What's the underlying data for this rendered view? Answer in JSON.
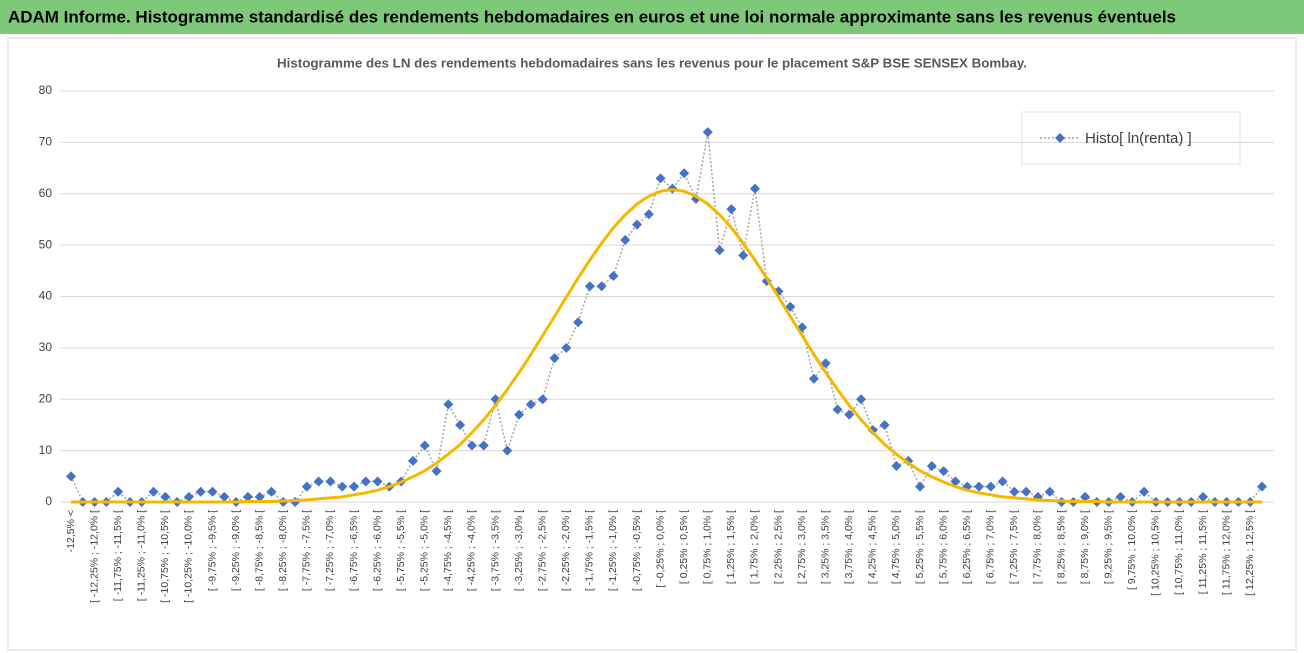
{
  "chart_data": {
    "type": "line",
    "title": "ADAM Informe. Histogramme standardisé des rendements hebdomadaires en euros et une loi normale approximante sans les revenus éventuels",
    "subtitle": "Histogramme des LN des rendements hebdomadaires sans les revenus pour le placement S&P BSE SENSEX Bombay.",
    "categories": [
      "-12,5% <",
      null,
      "[ -12,25% ; -12,0% [",
      null,
      "[ -11,75% ; -11,5% [",
      null,
      "[ -11,25% ; -11,0% [",
      null,
      "[ -10,75% ; -10,5% [",
      null,
      "[ -10,25% ; -10,0% [",
      null,
      "[ -9,75% ; -9,5% [",
      null,
      "[ -9,25% ; -9,0% [",
      null,
      "[ -8,75% ; -8,5% [",
      null,
      "[ -8,25% ; -8,0% [",
      null,
      "[ -7,75% ; -7,5% [",
      null,
      "[ -7,25% ; -7,0% [",
      null,
      "[ -6,75% ; -6,5% [",
      null,
      "[ -6,25% ; -6,0% [",
      null,
      "[ -5,75% ; -5,5% [",
      null,
      "[ -5,25% ; -5,0% [",
      null,
      "[ -4,75% ; -4,5% [",
      null,
      "[ -4,25% ; -4,0% [",
      null,
      "[ -3,75% ; -3,5% [",
      null,
      "[ -3,25% ; -3,0% [",
      null,
      "[ -2,75% ; -2,5% [",
      null,
      "[ -2,25% ; -2,0% [",
      null,
      "[ -1,75% ; -1,5% [",
      null,
      "[ -1,25% ; -1,0% [",
      null,
      "[ -0,75% ; -0,5% [",
      null,
      "[ -0,25% ; 0,0% [",
      null,
      "[ 0,25% ; 0,5% [",
      null,
      "[ 0,75% ; 1,0% [",
      null,
      "[ 1,25% ; 1,5% [",
      null,
      "[ 1,75% ; 2,0% [",
      null,
      "[ 2,25% ; 2,5% [",
      null,
      "[ 2,75% ; 3,0% [",
      null,
      "[ 3,25% ; 3,5% [",
      null,
      "[ 3,75% ; 4,0% [",
      null,
      "[ 4,25% ; 4,5% [",
      null,
      "[ 4,75% ; 5,0% [",
      null,
      "[ 5,25% ; 5,5% [",
      null,
      "[ 5,75% ; 6,0% [",
      null,
      "[ 6,25% ; 6,5% [",
      null,
      "[ 6,75% ; 7,0% [",
      null,
      "[ 7,25% ; 7,5% [",
      null,
      "[ 7,75% ; 8,0% [",
      null,
      "[ 8,25% ; 8,5% [",
      null,
      "[ 8,75% ; 9,0% [",
      null,
      "[ 9,25% ; 9,5% [",
      null,
      "[ 9,75% ; 10,0% [",
      null,
      "[ 10,25% ; 10,5% [",
      null,
      "[ 10,75% ; 11,0% [",
      null,
      "[ 11,25% ; 11,5% [",
      null,
      "[ 11,75% ; 12,0% [",
      null,
      "[ 12,25% ; 12,5% [",
      null
    ],
    "series": [
      {
        "name": "Histo[ ln(renta) ]",
        "color": "#4472c4",
        "line_color": "#a5a5a5",
        "marker": "diamond",
        "values": [
          5,
          0,
          0,
          0,
          2,
          0,
          0,
          2,
          1,
          0,
          1,
          2,
          2,
          1,
          0,
          1,
          1,
          2,
          0,
          0,
          3,
          4,
          4,
          3,
          3,
          4,
          4,
          3,
          4,
          8,
          11,
          6,
          19,
          15,
          11,
          11,
          20,
          10,
          17,
          19,
          20,
          28,
          30,
          35,
          42,
          42,
          44,
          51,
          54,
          56,
          63,
          61,
          64,
          59,
          72,
          49,
          57,
          48,
          61,
          43,
          41,
          38,
          34,
          24,
          27,
          18,
          17,
          20,
          14,
          15,
          7,
          8,
          3,
          7,
          6,
          4,
          3,
          3,
          3,
          4,
          2,
          2,
          1,
          2,
          0,
          0,
          1,
          0,
          0,
          1,
          0,
          2,
          0,
          0,
          0,
          0,
          1,
          0,
          0,
          0,
          0,
          3
        ]
      },
      {
        "color": "#f5b800",
        "values": [
          0,
          0,
          0,
          0,
          0,
          0,
          0,
          0,
          0,
          0,
          0,
          0,
          0,
          0,
          0,
          0.1,
          0.1,
          0.1,
          0.2,
          0.3,
          0.4,
          0.6,
          0.8,
          1.0,
          1.4,
          1.8,
          2.3,
          3.0,
          3.9,
          4.9,
          6.1,
          7.6,
          9.3,
          11.2,
          13.5,
          16.0,
          18.8,
          21.9,
          25.2,
          28.7,
          32.4,
          36.1,
          39.9,
          43.6,
          47.1,
          50.4,
          53.4,
          55.9,
          58.0,
          59.5,
          60.5,
          60.8,
          60.5,
          59.5,
          58.0,
          55.9,
          53.4,
          50.4,
          47.1,
          43.6,
          39.9,
          36.1,
          32.4,
          28.7,
          25.2,
          21.9,
          18.8,
          16.0,
          13.5,
          11.2,
          9.3,
          7.6,
          6.1,
          4.9,
          3.9,
          3.0,
          2.3,
          1.8,
          1.4,
          1.0,
          0.8,
          0.6,
          0.4,
          0.3,
          0.2,
          0.1,
          0.1,
          0.1,
          0,
          0,
          0,
          0,
          0,
          0,
          0,
          0,
          0,
          0,
          0,
          0,
          0,
          0
        ]
      }
    ],
    "ylim": [
      0,
      80
    ],
    "yticks": [
      0,
      10,
      20,
      30,
      40,
      50,
      60,
      70,
      80
    ],
    "grid": true,
    "legend": "top-right"
  }
}
